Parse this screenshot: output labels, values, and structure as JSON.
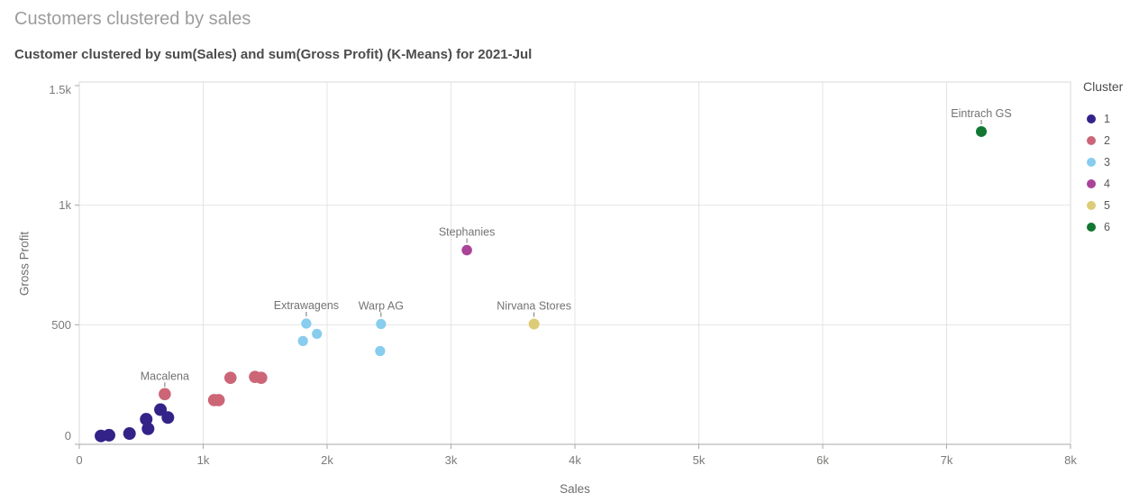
{
  "header": {
    "title": "Customers clustered by sales",
    "subtitle": "Customer clustered by sum(Sales) and sum(Gross Profit) (K-Means) for 2021-Jul"
  },
  "chart_data": {
    "type": "scatter",
    "title": "Customers clustered by sales",
    "subtitle": "Customer clustered by sum(Sales) and sum(Gross Profit) (K-Means) for 2021-Jul",
    "xlabel": "Sales",
    "ylabel": "Gross Profit",
    "xlim": [
      0,
      8000
    ],
    "ylim": [
      0,
      1500
    ],
    "grid": true,
    "x_ticks": [
      {
        "v": 0,
        "label": "0"
      },
      {
        "v": 1000,
        "label": "1k"
      },
      {
        "v": 2000,
        "label": "2k"
      },
      {
        "v": 3000,
        "label": "3k"
      },
      {
        "v": 4000,
        "label": "4k"
      },
      {
        "v": 5000,
        "label": "5k"
      },
      {
        "v": 6000,
        "label": "6k"
      },
      {
        "v": 7000,
        "label": "7k"
      },
      {
        "v": 8000,
        "label": "8k"
      }
    ],
    "y_ticks": [
      {
        "v": 0,
        "label": "0"
      },
      {
        "v": 500,
        "label": "500"
      },
      {
        "v": 1000,
        "label": "1k"
      },
      {
        "v": 1500,
        "label": "1.5k"
      }
    ],
    "legend": {
      "title": "Cluster",
      "position": "right",
      "items": [
        {
          "label": "1",
          "color": "#332288"
        },
        {
          "label": "2",
          "color": "#CC6677"
        },
        {
          "label": "3",
          "color": "#88CCEE"
        },
        {
          "label": "4",
          "color": "#AA4499"
        },
        {
          "label": "5",
          "color": "#DDCC77"
        },
        {
          "label": "6",
          "color": "#117733"
        }
      ]
    },
    "series": [
      {
        "name": "1",
        "color": "#332288",
        "r": 7,
        "points": [
          {
            "x": 175,
            "y": 35
          },
          {
            "x": 240,
            "y": 38
          },
          {
            "x": 405,
            "y": 45
          },
          {
            "x": 540,
            "y": 105
          },
          {
            "x": 555,
            "y": 65
          },
          {
            "x": 655,
            "y": 145
          },
          {
            "x": 715,
            "y": 112
          }
        ]
      },
      {
        "name": "2",
        "color": "#CC6677",
        "r": 6.8,
        "points": [
          {
            "x": 690,
            "y": 210,
            "label": "Macalena"
          },
          {
            "x": 1088,
            "y": 185
          },
          {
            "x": 1125,
            "y": 185
          },
          {
            "x": 1220,
            "y": 278
          },
          {
            "x": 1418,
            "y": 282
          },
          {
            "x": 1468,
            "y": 278
          }
        ]
      },
      {
        "name": "3",
        "color": "#88CCEE",
        "r": 5.6,
        "points": [
          {
            "x": 1805,
            "y": 432
          },
          {
            "x": 1832,
            "y": 505,
            "label": "Extrawagens"
          },
          {
            "x": 1918,
            "y": 462
          },
          {
            "x": 2428,
            "y": 390
          },
          {
            "x": 2435,
            "y": 503,
            "label": "Warp AG"
          }
        ]
      },
      {
        "name": "4",
        "color": "#AA4499",
        "r": 5.8,
        "points": [
          {
            "x": 3128,
            "y": 812,
            "label": "Stephanies"
          }
        ]
      },
      {
        "name": "5",
        "color": "#DDCC77",
        "r": 6,
        "points": [
          {
            "x": 3670,
            "y": 503,
            "label": "Nirvana Stores"
          }
        ]
      },
      {
        "name": "6",
        "color": "#117733",
        "r": 6,
        "points": [
          {
            "x": 7280,
            "y": 1308,
            "label": "Eintrach GS"
          }
        ]
      }
    ],
    "style": {
      "grid_color": "#e4e4e4",
      "border_color": "#d8d8d8",
      "axis_line_color": "#a8a8a8",
      "tick_label_color": "#7b7a78",
      "point_label_color": "#737373"
    }
  }
}
